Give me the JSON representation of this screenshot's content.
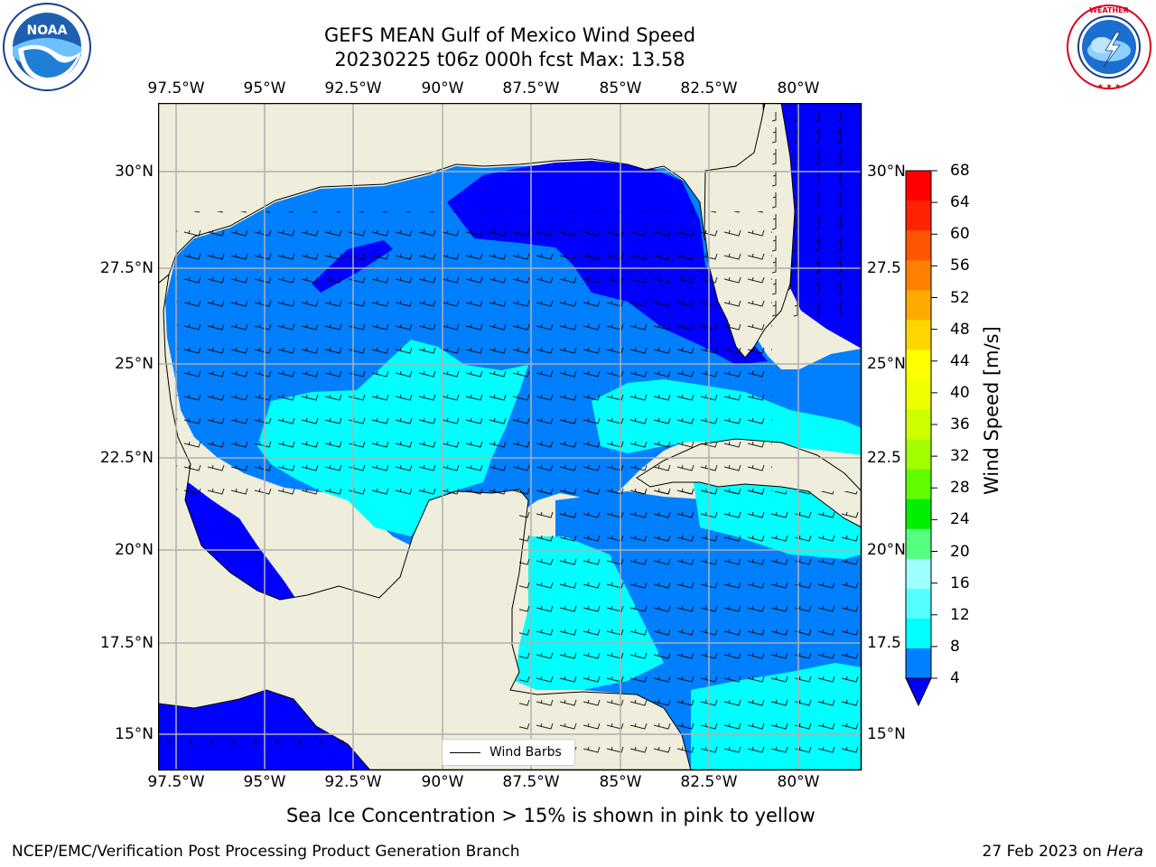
{
  "title": {
    "line1": "GEFS MEAN Gulf of Mexico Wind Speed",
    "line2": "20230225 t06z 000h fcst   Max: 13.58"
  },
  "logos": {
    "left": "NOAA",
    "left_ring": "NATIONAL OCEANIC AND ATMOSPHERIC ADMINISTRATION · U.S. DEPARTMENT OF COMMERCE",
    "right_ring": "NATIONAL WEATHER SERVICE"
  },
  "map": {
    "lon_labels": [
      "97.5°W",
      "95°W",
      "92.5°W",
      "90°W",
      "87.5°W",
      "85°W",
      "82.5°W",
      "80°W"
    ],
    "lat_labels_left": [
      "30°N",
      "27.5°N",
      "25°N",
      "22.5°N",
      "20°N",
      "17.5°N",
      "15°N"
    ],
    "lat_labels_right": [
      "30°N",
      "27.5",
      "25°N",
      "22.5",
      "20°N",
      "17.5",
      "15°N"
    ],
    "lon_range": [
      -98,
      -78.2
    ],
    "lat_range": [
      14.0,
      31.7
    ],
    "land_color": "#efeddb",
    "grid": true,
    "legend_label": "Wind Barbs"
  },
  "colorbar": {
    "ticks": [
      "68",
      "64",
      "60",
      "56",
      "52",
      "48",
      "44",
      "40",
      "36",
      "32",
      "28",
      "24",
      "20",
      "16",
      "12",
      "8",
      "4"
    ],
    "title": "Wind Speed [m/s]",
    "colors": [
      "#ff0000",
      "#ff2200",
      "#ff5500",
      "#ff8000",
      "#ffaa00",
      "#ffd500",
      "#ffff00",
      "#eeff00",
      "#cdff00",
      "#a2ff00",
      "#60ff00",
      "#00ee00",
      "#55ff7f",
      "#a0ffff",
      "#55ffff",
      "#00ffff",
      "#0080ff"
    ],
    "under_color": "#0000ff"
  },
  "note": "Sea Ice Concentration > 15% is shown in pink to yellow",
  "footer": {
    "left": "NCEP/EMC/Verification Post Processing Product Generation Branch",
    "right_prefix": "27 Feb 2023 on ",
    "right_machine": "Hera"
  }
}
